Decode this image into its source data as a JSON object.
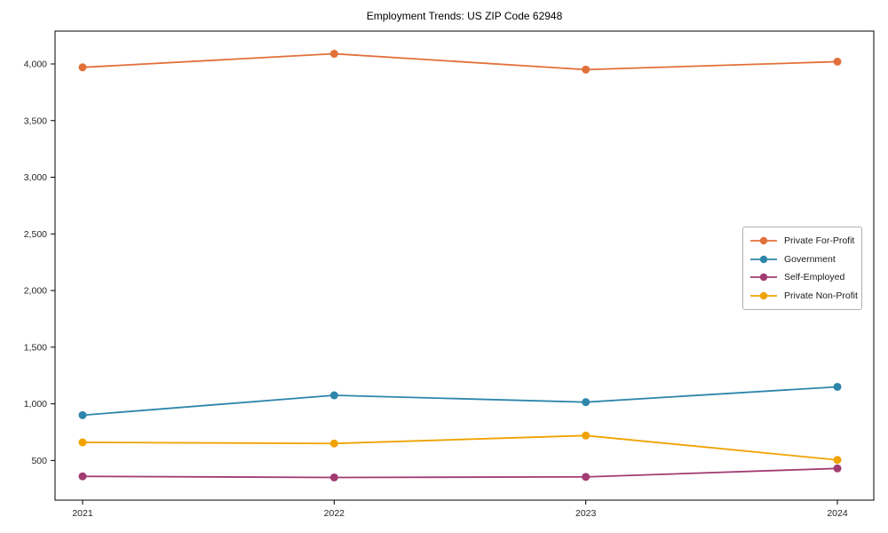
{
  "figure": {
    "title": "Employment Trends: US ZIP Code 62948"
  },
  "chart_data": {
    "type": "line",
    "title": "Employment Trends: US ZIP Code 62948",
    "xlabel": "",
    "ylabel": "",
    "categories": [
      "2021",
      "2022",
      "2023",
      "2024"
    ],
    "series": [
      {
        "name": "Private For-Profit",
        "color": "#E2703A",
        "values": [
          3970,
          4090,
          3950,
          4020
        ]
      },
      {
        "name": "Government",
        "color": "#2E86AB",
        "values": [
          900,
          1075,
          1015,
          1150
        ]
      },
      {
        "name": "Self-Employed",
        "color": "#A23B72",
        "values": [
          360,
          350,
          355,
          430
        ]
      },
      {
        "name": "Private Non-Profit",
        "color": "#F0A202",
        "values": [
          660,
          650,
          720,
          505
        ]
      }
    ],
    "ylim": [
      150,
      4290
    ],
    "yticks": [
      500,
      1000,
      1500,
      2000,
      2500,
      3000,
      3500,
      4000
    ],
    "grid": false,
    "legend_position": "center-right",
    "marker": "circle",
    "axis_color": "#000000",
    "tick_label_color": "#262626"
  }
}
